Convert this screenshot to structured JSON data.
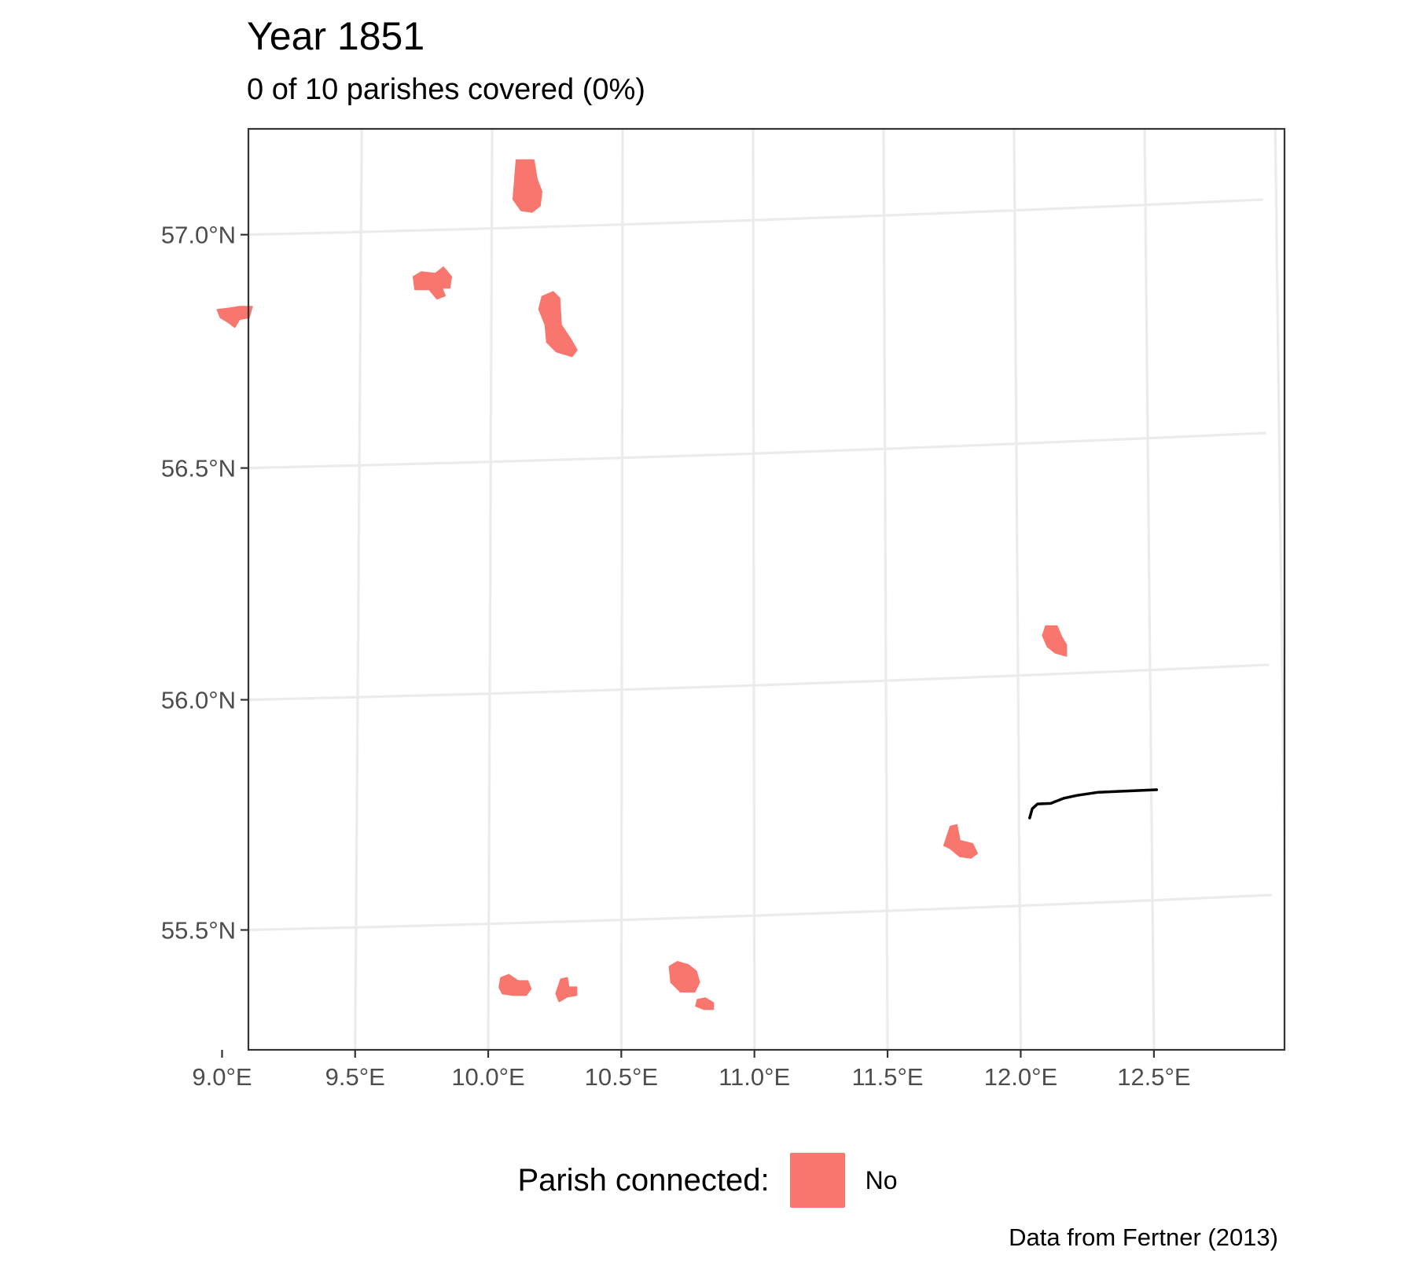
{
  "title": "Year 1851",
  "subtitle": "0 of 10 parishes covered (0%)",
  "caption": "Data from Fertner (2013)",
  "legend": {
    "title": "Parish connected:",
    "label": "No",
    "color": "#F8766D"
  },
  "colors": {
    "parish_fill": "#F8766D",
    "line": "#000000",
    "grid": "#EBEBEB",
    "frame": "#333333",
    "tick_text": "#4D4D4D"
  },
  "chart_data": {
    "type": "map",
    "projection": "conic (graticule drawn as curves)",
    "grid": true,
    "legend_position": "bottom",
    "x_ticks": [
      "9.0°E",
      "9.5°E",
      "10.0°E",
      "10.5°E",
      "11.0°E",
      "11.5°E",
      "12.0°E",
      "12.5°E"
    ],
    "y_ticks": [
      "55.5°N",
      "56.0°N",
      "56.5°N",
      "57.0°N"
    ],
    "lon_values": [
      9.0,
      9.5,
      10.0,
      10.5,
      11.0,
      11.5,
      12.0,
      12.5
    ],
    "lat_values": [
      55.5,
      56.0,
      56.5,
      57.0
    ],
    "xlim": [
      8.78,
      12.7
    ],
    "ylim": [
      55.21,
      57.21
    ],
    "parishes": [
      {
        "lon": 10.13,
        "lat": 57.07,
        "connected": "No"
      },
      {
        "lon": 9.78,
        "lat": 56.89,
        "connected": "No"
      },
      {
        "lon": 9.02,
        "lat": 56.83,
        "connected": "No"
      },
      {
        "lon": 10.23,
        "lat": 56.78,
        "connected": "No"
      },
      {
        "lon": 12.13,
        "lat": 56.07,
        "connected": "No"
      },
      {
        "lon": 11.77,
        "lat": 55.63,
        "connected": "No"
      },
      {
        "lon": 10.1,
        "lat": 55.36,
        "connected": "No"
      },
      {
        "lon": 10.29,
        "lat": 55.35,
        "connected": "No"
      },
      {
        "lon": 10.74,
        "lat": 55.37,
        "connected": "No"
      },
      {
        "lon": 10.81,
        "lat": 55.31,
        "connected": "No"
      }
    ],
    "railway_line": [
      [
        12.04,
        55.69
      ],
      [
        12.05,
        55.71
      ],
      [
        12.07,
        55.72
      ],
      [
        12.12,
        55.72
      ],
      [
        12.17,
        55.73
      ],
      [
        12.22,
        55.735
      ],
      [
        12.3,
        55.74
      ],
      [
        12.4,
        55.74
      ],
      [
        12.52,
        55.74
      ]
    ]
  }
}
